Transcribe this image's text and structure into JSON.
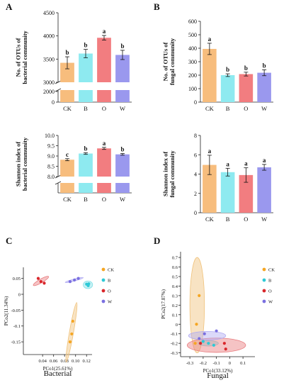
{
  "colors": {
    "CK": "#f7bd7d",
    "B": "#8eeaf0",
    "O": "#f27d80",
    "W": "#9a98ee",
    "ell_CK": "#f0c27a",
    "ell_B": "#7edfe6",
    "ell_O": "#e87a7d",
    "ell_W": "#b0aaf2",
    "pt_CK": "#f5a623",
    "pt_B": "#2ec9d6",
    "pt_O": "#d9262b",
    "pt_W": "#7a6fe0"
  },
  "chart_data": [
    {
      "panel": "A",
      "type": "bar",
      "broken_axis": true,
      "categories": [
        "CK",
        "B",
        "O",
        "W"
      ],
      "values": [
        3420,
        3620,
        3960,
        3590
      ],
      "errors": [
        130,
        90,
        50,
        100
      ],
      "letters": [
        "b",
        "b",
        "a",
        "b"
      ],
      "ylabel": "No. of OTUs of bacterial community",
      "yticks_upper": [
        "3000",
        "3500",
        "4000",
        "4500"
      ],
      "yticks_lower": [
        "0",
        "2000"
      ],
      "ylim_upper": [
        3000,
        4500
      ]
    },
    {
      "panel": "B",
      "type": "bar",
      "categories": [
        "CK",
        "B",
        "O",
        "W"
      ],
      "values": [
        395,
        200,
        208,
        218
      ],
      "errors": [
        42,
        10,
        14,
        22
      ],
      "letters": [
        "a",
        "b",
        "b",
        "b"
      ],
      "ylabel": "No. of OTUs of fungal community",
      "yticks": [
        "0",
        "100",
        "200",
        "300",
        "400",
        "500",
        "600"
      ],
      "ylim": [
        0,
        600
      ]
    },
    {
      "panel": "C",
      "type": "bar",
      "broken_axis": true,
      "categories": [
        "CK",
        "B",
        "O",
        "W"
      ],
      "values": [
        8.82,
        9.12,
        9.37,
        9.08
      ],
      "errors": [
        0.05,
        0.04,
        0.05,
        0.04
      ],
      "letters": [
        "c",
        "b",
        "a",
        "b"
      ],
      "ylabel": "Shannon index of bacterial community",
      "yticks_upper": [
        "8.0",
        "8.5",
        "9.0",
        "9.5",
        "10.0"
      ],
      "ylim_upper": [
        8.0,
        10.0
      ]
    },
    {
      "panel": "D",
      "type": "bar",
      "categories": [
        "CK",
        "B",
        "O",
        "W"
      ],
      "values": [
        4.95,
        4.2,
        3.9,
        4.7
      ],
      "errors": [
        1.0,
        0.4,
        0.75,
        0.3
      ],
      "letters": [
        "a",
        "a",
        "a",
        "a"
      ],
      "ylabel": "Shannon index of fungal community",
      "yticks": [
        "0",
        "2",
        "4",
        "6",
        "8"
      ],
      "ylim": [
        0,
        8
      ]
    },
    {
      "panel": "C",
      "type": "scatter",
      "title": "Bacterial",
      "xlabel": "PCo1(25.61%)",
      "ylabel": "PCo2(11.34%)",
      "xlim": [
        0.005,
        0.13
      ],
      "ylim": [
        -0.19,
        0.085
      ],
      "xticks": [
        "0.04",
        "0.06",
        "0.08",
        "0.10",
        "0.12"
      ],
      "yticks": [
        "0.05",
        "0",
        "-0.05",
        "-0.1",
        "-0.15"
      ],
      "legend": [
        "CK",
        "B",
        "O",
        "W"
      ],
      "series": [
        {
          "name": "CK",
          "points": [
            [
              0.095,
              -0.085
            ],
            [
              0.093,
              -0.125
            ],
            [
              0.09,
              -0.15
            ]
          ],
          "ellipse": {
            "cx": 0.0925,
            "cy": -0.12,
            "rx": 0.055,
            "ry": 0.0065,
            "angle": -80
          }
        },
        {
          "name": "B",
          "points": [
            [
              0.12,
              0.032
            ],
            [
              0.123,
              0.027
            ],
            [
              0.124,
              0.033
            ]
          ],
          "ellipse": {
            "cx": 0.1225,
            "cy": 0.03,
            "rx": 0.0085,
            "ry": 0.012,
            "angle": 0
          }
        },
        {
          "name": "O",
          "points": [
            [
              0.032,
              0.05
            ],
            [
              0.037,
              0.04
            ],
            [
              0.043,
              0.035
            ]
          ],
          "ellipse": {
            "cx": 0.037,
            "cy": 0.042,
            "rx": 0.016,
            "ry": 0.006,
            "angle": -30
          }
        },
        {
          "name": "W",
          "points": [
            [
              0.09,
              0.04
            ],
            [
              0.098,
              0.045
            ],
            [
              0.105,
              0.05
            ]
          ],
          "ellipse": {
            "cx": 0.0975,
            "cy": 0.045,
            "rx": 0.017,
            "ry": 0.003,
            "angle": -15
          }
        }
      ]
    },
    {
      "panel": "D",
      "type": "scatter",
      "title": "Fungal",
      "xlabel": "PCo1(33.12%)",
      "ylabel": "PCo2(17.87%)",
      "xlim": [
        -0.37,
        0.19
      ],
      "ylim": [
        -0.34,
        0.76
      ],
      "xticks": [
        "-0.3",
        "-0.2",
        "-0.1",
        "0",
        "0.1"
      ],
      "yticks": [
        "0.7",
        "0.6",
        "0.5",
        "0.4",
        "0.3",
        "0.2",
        "0.1",
        "0",
        "-0.1",
        "-0.2",
        "-0.3"
      ],
      "legend": [
        "CK",
        "B",
        "O",
        "W"
      ],
      "series": [
        {
          "name": "CK",
          "points": [
            [
              -0.23,
              0.3
            ],
            [
              -0.25,
              0.0
            ],
            [
              -0.26,
              -0.2
            ]
          ],
          "ellipse": {
            "cx": -0.245,
            "cy": 0.2,
            "rx": 0.055,
            "ry": 0.5,
            "angle": 0
          }
        },
        {
          "name": "B",
          "points": [
            [
              -0.2,
              -0.18
            ],
            [
              -0.16,
              -0.2
            ],
            [
              -0.12,
              -0.22
            ]
          ],
          "ellipse": {
            "cx": -0.16,
            "cy": -0.2,
            "rx": 0.075,
            "ry": 0.028,
            "angle": 0
          }
        },
        {
          "name": "O",
          "points": [
            [
              -0.22,
              -0.2
            ],
            [
              -0.04,
              -0.2
            ],
            [
              -0.03,
              -0.26
            ]
          ],
          "ellipse": {
            "cx": -0.1,
            "cy": -0.22,
            "rx": 0.22,
            "ry": 0.075,
            "angle": 0
          }
        },
        {
          "name": "W",
          "points": [
            [
              -0.23,
              -0.15
            ],
            [
              -0.19,
              -0.1
            ],
            [
              -0.1,
              -0.07
            ]
          ],
          "ellipse": {
            "cx": -0.17,
            "cy": -0.12,
            "rx": 0.14,
            "ry": 0.045,
            "angle": 0
          }
        }
      ]
    }
  ],
  "panel_labels": [
    "A",
    "B",
    "C",
    "D"
  ]
}
